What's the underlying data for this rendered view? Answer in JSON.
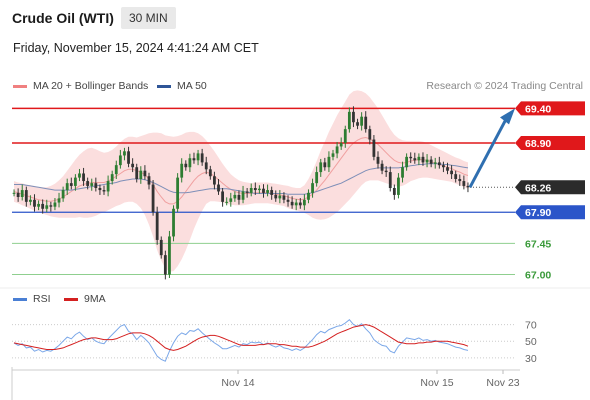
{
  "header": {
    "instrument": "Crude Oil (WTI)",
    "timeframe": "30 MIN",
    "datetime": "Friday, November 15, 2024 4:41:24 AM CET"
  },
  "legend_main": [
    {
      "label": "MA 20 + Bollinger Bands",
      "color": "#f08080"
    },
    {
      "label": "MA 50",
      "color": "#2f5597"
    }
  ],
  "copyright": "Research © 2024 Trading Central",
  "legend_rsi": [
    {
      "label": "RSI",
      "color": "#4a7fd4"
    },
    {
      "label": "9MA",
      "color": "#d42020"
    }
  ],
  "colors": {
    "resistance": "#e0181b",
    "support": "#2b55c9",
    "target": "#3a9a3a",
    "current": "#2b2b2b",
    "bollinger_fill": "#fbdede",
    "candle_up": "#2e7d32",
    "candle_down": "#333333",
    "arrow": "#2f6fb0"
  },
  "chart_data": [
    {
      "type": "candlestick",
      "title": "Crude Oil (WTI) 30 MIN",
      "x_ticks": [
        "Nov 14",
        "Nov 15",
        "Nov 23"
      ],
      "ylim": [
        66.95,
        69.55
      ],
      "levels": [
        {
          "value": 69.4,
          "label": "69.40",
          "kind": "resistance"
        },
        {
          "value": 68.9,
          "label": "68.90",
          "kind": "resistance"
        },
        {
          "value": 68.26,
          "label": "68.26",
          "kind": "current"
        },
        {
          "value": 67.9,
          "label": "67.90",
          "kind": "support"
        },
        {
          "value": 67.45,
          "label": "67.45",
          "kind": "target"
        },
        {
          "value": 67.0,
          "label": "67.00",
          "kind": "target"
        }
      ],
      "close": [
        68.18,
        68.12,
        68.22,
        68.05,
        68.08,
        67.98,
        68.02,
        67.95,
        68.0,
        67.98,
        68.04,
        68.1,
        68.22,
        68.32,
        68.28,
        68.4,
        68.46,
        68.35,
        68.28,
        68.32,
        68.25,
        68.22,
        68.2,
        68.35,
        68.45,
        68.58,
        68.72,
        68.78,
        68.6,
        68.55,
        68.38,
        68.5,
        68.42,
        68.3,
        67.9,
        67.5,
        67.28,
        67.0,
        67.55,
        67.95,
        68.4,
        68.6,
        68.55,
        68.68,
        68.65,
        68.75,
        68.62,
        68.52,
        68.42,
        68.3,
        68.2,
        68.05,
        68.05,
        68.1,
        68.15,
        68.08,
        68.2,
        68.18,
        68.25,
        68.22,
        68.24,
        68.18,
        68.22,
        68.15,
        68.1,
        68.14,
        68.08,
        68.05,
        68.0,
        68.04,
        68.0,
        68.08,
        68.18,
        68.32,
        68.48,
        68.62,
        68.55,
        68.7,
        68.75,
        68.85,
        68.9,
        69.1,
        69.35,
        69.2,
        69.15,
        69.28,
        69.1,
        68.95,
        68.7,
        68.6,
        68.5,
        68.48,
        68.25,
        68.15,
        68.4,
        68.55,
        68.7,
        68.68,
        68.65,
        68.7,
        68.62,
        68.66,
        68.6,
        68.62,
        68.58,
        68.55,
        68.5,
        68.45,
        68.38,
        68.35,
        68.28,
        68.26
      ],
      "ma20": [
        68.2,
        68.18,
        68.16,
        68.14,
        68.12,
        68.1,
        68.08,
        68.07,
        68.06,
        68.06,
        68.07,
        68.09,
        68.12,
        68.16,
        68.2,
        68.24,
        68.28,
        68.3,
        68.32,
        68.33,
        68.33,
        68.33,
        68.33,
        68.35,
        68.38,
        68.42,
        68.46,
        68.5,
        68.52,
        68.52,
        68.5,
        68.48,
        68.44,
        68.38,
        68.3,
        68.2,
        68.12,
        68.05,
        68.02,
        68.02,
        68.06,
        68.12,
        68.2,
        68.28,
        68.36,
        68.42,
        68.46,
        68.48,
        68.46,
        68.42,
        68.37,
        68.32,
        68.27,
        68.23,
        68.2,
        68.18,
        68.17,
        68.17,
        68.17,
        68.18,
        68.18,
        68.18,
        68.18,
        68.17,
        68.16,
        68.15,
        68.14,
        68.12,
        68.1,
        68.09,
        68.08,
        68.09,
        68.12,
        68.16,
        68.22,
        68.29,
        68.36,
        68.44,
        68.52,
        68.6,
        68.68,
        68.76,
        68.84,
        68.9,
        68.94,
        68.97,
        68.98,
        68.96,
        68.92,
        68.88,
        68.82,
        68.76,
        68.7,
        68.65,
        68.62,
        68.61,
        68.62,
        68.64,
        68.65,
        68.66,
        68.66,
        68.65,
        68.63,
        68.61,
        68.59,
        68.57,
        68.55,
        68.53,
        68.5,
        68.48,
        68.45,
        68.43
      ],
      "ma50": [
        68.3,
        68.3,
        68.3,
        68.29,
        68.28,
        68.27,
        68.26,
        68.25,
        68.24,
        68.23,
        68.22,
        68.22,
        68.22,
        68.22,
        68.22,
        68.23,
        68.24,
        68.25,
        68.26,
        68.27,
        68.28,
        68.29,
        68.3,
        68.31,
        68.32,
        68.33,
        68.35,
        68.36,
        68.37,
        68.38,
        68.38,
        68.38,
        68.37,
        68.35,
        68.33,
        68.3,
        68.27,
        68.24,
        68.21,
        68.19,
        68.18,
        68.18,
        68.18,
        68.19,
        68.2,
        68.21,
        68.22,
        68.23,
        68.24,
        68.24,
        68.24,
        68.24,
        68.24,
        68.23,
        68.22,
        68.21,
        68.2,
        68.19,
        68.18,
        68.17,
        68.17,
        68.17,
        68.17,
        68.17,
        68.17,
        68.17,
        68.17,
        68.16,
        68.16,
        68.16,
        68.16,
        68.16,
        68.17,
        68.18,
        68.2,
        68.22,
        68.24,
        68.26,
        68.28,
        68.3,
        68.32,
        68.35,
        68.38,
        68.41,
        68.44,
        68.47,
        68.5,
        68.52,
        68.53,
        68.54,
        68.54,
        68.54,
        68.54,
        68.54,
        68.54,
        68.55,
        68.56,
        68.57,
        68.58,
        68.59,
        68.59,
        68.6,
        68.6,
        68.6,
        68.6,
        68.59,
        68.59,
        68.58,
        68.57,
        68.56,
        68.55,
        68.54
      ],
      "bb_width": [
        0.15,
        0.15,
        0.16,
        0.16,
        0.17,
        0.18,
        0.18,
        0.19,
        0.2,
        0.22,
        0.24,
        0.27,
        0.3,
        0.34,
        0.38,
        0.42,
        0.45,
        0.48,
        0.5,
        0.5,
        0.48,
        0.45,
        0.43,
        0.42,
        0.42,
        0.43,
        0.45,
        0.46,
        0.47,
        0.47,
        0.48,
        0.52,
        0.58,
        0.66,
        0.75,
        0.85,
        0.92,
        0.96,
        0.98,
        0.97,
        0.94,
        0.9,
        0.85,
        0.78,
        0.7,
        0.62,
        0.54,
        0.46,
        0.4,
        0.36,
        0.32,
        0.28,
        0.25,
        0.22,
        0.2,
        0.18,
        0.17,
        0.16,
        0.15,
        0.15,
        0.15,
        0.15,
        0.15,
        0.15,
        0.15,
        0.15,
        0.15,
        0.16,
        0.16,
        0.16,
        0.17,
        0.2,
        0.26,
        0.34,
        0.42,
        0.5,
        0.56,
        0.62,
        0.66,
        0.7,
        0.72,
        0.74,
        0.76,
        0.75,
        0.72,
        0.68,
        0.64,
        0.6,
        0.56,
        0.52,
        0.48,
        0.44,
        0.4,
        0.37,
        0.35,
        0.33,
        0.31,
        0.29,
        0.28,
        0.27,
        0.26,
        0.25,
        0.24,
        0.23,
        0.22,
        0.21,
        0.2,
        0.19,
        0.19,
        0.19,
        0.19,
        0.19
      ],
      "forecast_arrow": {
        "from": 68.26,
        "to": 69.4
      }
    },
    {
      "type": "line",
      "title": "RSI",
      "ylim": [
        25,
        78
      ],
      "y_ticks": [
        70,
        50,
        30
      ],
      "series": [
        {
          "name": "RSI",
          "values": [
            48,
            45,
            47,
            42,
            43,
            38,
            40,
            37,
            39,
            38,
            41,
            45,
            50,
            55,
            53,
            58,
            61,
            56,
            52,
            54,
            50,
            48,
            47,
            53,
            58,
            63,
            68,
            70,
            62,
            59,
            52,
            57,
            53,
            48,
            40,
            32,
            28,
            26,
            38,
            48,
            56,
            60,
            58,
            63,
            62,
            65,
            60,
            56,
            52,
            48,
            45,
            41,
            41,
            43,
            45,
            43,
            47,
            46,
            49,
            48,
            49,
            46,
            48,
            45,
            43,
            45,
            42,
            41,
            39,
            41,
            39,
            42,
            47,
            52,
            58,
            62,
            60,
            64,
            66,
            68,
            69,
            72,
            76,
            70,
            68,
            71,
            65,
            60,
            52,
            48,
            45,
            44,
            38,
            36,
            44,
            49,
            54,
            53,
            52,
            54,
            51,
            52,
            50,
            51,
            49,
            48,
            47,
            45,
            43,
            42,
            40,
            39
          ]
        },
        {
          "name": "9MA",
          "values": [
            48,
            47,
            46,
            45,
            44,
            43,
            42,
            41,
            40,
            40,
            40,
            41,
            42,
            44,
            46,
            48,
            50,
            52,
            53,
            54,
            54,
            53,
            52,
            52,
            52,
            53,
            55,
            57,
            59,
            60,
            60,
            60,
            59,
            57,
            54,
            50,
            46,
            42,
            40,
            39,
            40,
            42,
            44,
            47,
            50,
            53,
            55,
            56,
            57,
            57,
            56,
            54,
            52,
            50,
            48,
            46,
            45,
            45,
            45,
            45,
            46,
            46,
            47,
            47,
            47,
            46,
            46,
            45,
            44,
            44,
            43,
            43,
            43,
            44,
            46,
            48,
            50,
            53,
            56,
            59,
            61,
            63,
            65,
            67,
            68,
            69,
            70,
            69,
            67,
            64,
            61,
            58,
            55,
            52,
            49,
            48,
            47,
            47,
            47,
            48,
            48,
            49,
            49,
            50,
            50,
            50,
            50,
            49,
            48,
            47,
            46,
            44
          ]
        }
      ]
    }
  ]
}
